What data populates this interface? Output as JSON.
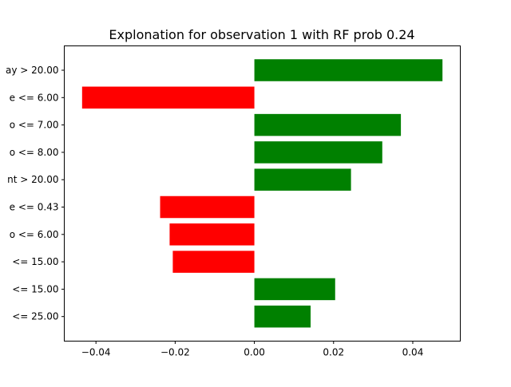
{
  "chart_data": {
    "type": "bar",
    "orientation": "horizontal",
    "title": "Explonation for observation 1 with RF prob 0.24",
    "xlabel": "",
    "ylabel": "",
    "xlim": [
      -0.048,
      0.052
    ],
    "xticks": [
      -0.04,
      -0.02,
      0.0,
      0.02,
      0.04
    ],
    "xtick_labels": [
      "−0.04",
      "−0.02",
      "0.00",
      "0.02",
      "0.04"
    ],
    "categories": [
      "ay > 20.00",
      "e <= 6.00",
      "o <= 7.00",
      "o <= 8.00",
      "nt > 20.00",
      "e <= 0.43",
      "o <= 6.00",
      "<= 15.00",
      "<= 15.00",
      "<= 25.00"
    ],
    "values": [
      0.0475,
      -0.0435,
      0.037,
      0.0323,
      0.0244,
      -0.0238,
      -0.0214,
      -0.0206,
      0.0204,
      0.0142
    ],
    "colors": {
      "positive": "#008000",
      "negative": "#ff0000"
    },
    "grid": false,
    "legend": "none"
  }
}
